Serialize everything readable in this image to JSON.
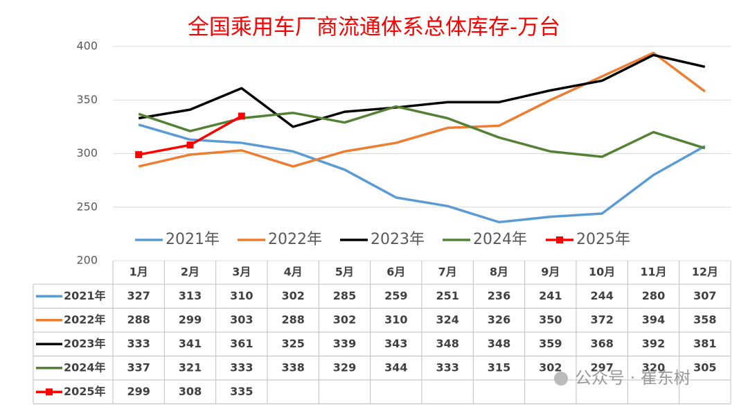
{
  "chart_data": {
    "type": "line",
    "title": "全国乘用车厂商流通体系总体库存-万台",
    "categories": [
      "1月",
      "2月",
      "3月",
      "4月",
      "5月",
      "6月",
      "7月",
      "8月",
      "9月",
      "10月",
      "11月",
      "12月"
    ],
    "series": [
      {
        "name": "2021年",
        "color": "#5b9bd5",
        "values": [
          327,
          313,
          310,
          302,
          285,
          259,
          251,
          236,
          241,
          244,
          280,
          307
        ]
      },
      {
        "name": "2022年",
        "color": "#ed7d31",
        "values": [
          288,
          299,
          303,
          288,
          302,
          310,
          324,
          326,
          350,
          372,
          394,
          358
        ]
      },
      {
        "name": "2023年",
        "color": "#000000",
        "values": [
          333,
          341,
          361,
          325,
          339,
          343,
          348,
          348,
          359,
          368,
          392,
          381
        ]
      },
      {
        "name": "2024年",
        "color": "#548235",
        "values": [
          337,
          321,
          333,
          338,
          329,
          344,
          333,
          315,
          302,
          297,
          320,
          305
        ]
      },
      {
        "name": "2025年",
        "color": "#ff0000",
        "values": [
          299,
          308,
          335,
          null,
          null,
          null,
          null,
          null,
          null,
          null,
          null,
          null
        ],
        "marker": "square"
      }
    ],
    "ylim": [
      200,
      400
    ],
    "yticks": [
      200,
      250,
      300,
      350,
      400
    ],
    "grid": true,
    "watermark": "公众号 · 崔东树"
  }
}
